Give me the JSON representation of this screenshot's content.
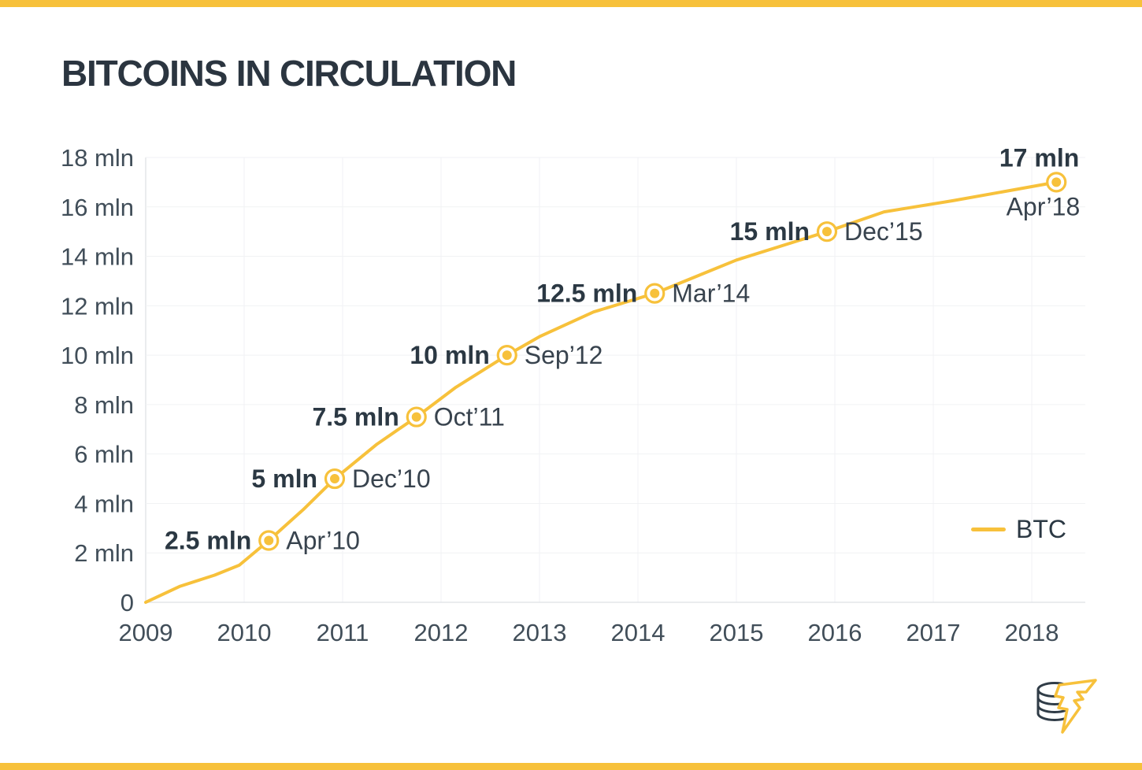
{
  "page": {
    "accent_bar_color": "#F7C13B",
    "background_color": "#FFFFFF",
    "title_color": "#2B3540"
  },
  "chart_data": {
    "type": "line",
    "title": "BITCOINS IN CIRCULATION",
    "xlabel": "",
    "ylabel": "",
    "xlim": [
      2009,
      2018.55
    ],
    "ylim": [
      0,
      18
    ],
    "grid": {
      "horizontal": true,
      "vertical": true
    },
    "x_ticks": [
      {
        "value": 2009,
        "label": "2009"
      },
      {
        "value": 2010,
        "label": "2010"
      },
      {
        "value": 2011,
        "label": "2011"
      },
      {
        "value": 2012,
        "label": "2012"
      },
      {
        "value": 2013,
        "label": "2013"
      },
      {
        "value": 2014,
        "label": "2014"
      },
      {
        "value": 2015,
        "label": "2015"
      },
      {
        "value": 2016,
        "label": "2016"
      },
      {
        "value": 2017,
        "label": "2017"
      },
      {
        "value": 2018,
        "label": "2018"
      }
    ],
    "y_ticks": [
      {
        "value": 0,
        "label": "0"
      },
      {
        "value": 2,
        "label": "2 mln"
      },
      {
        "value": 4,
        "label": "4 mln"
      },
      {
        "value": 6,
        "label": "6 mln"
      },
      {
        "value": 8,
        "label": "8 mln"
      },
      {
        "value": 10,
        "label": "10 mln"
      },
      {
        "value": 12,
        "label": "12 mln"
      },
      {
        "value": 14,
        "label": "14 mln"
      },
      {
        "value": 16,
        "label": "16 mln"
      },
      {
        "value": 18,
        "label": "18 mln"
      }
    ],
    "legend": {
      "position": "middle-right",
      "items": [
        {
          "label": "BTC",
          "color": "#F7C13B"
        }
      ]
    },
    "series": [
      {
        "name": "BTC",
        "color": "#F7C13B",
        "points": [
          [
            2009.0,
            0
          ],
          [
            2009.35,
            0.65
          ],
          [
            2009.7,
            1.1
          ],
          [
            2009.95,
            1.5
          ],
          [
            2010.25,
            2.5
          ],
          [
            2010.6,
            3.75
          ],
          [
            2010.92,
            5.0
          ],
          [
            2011.35,
            6.4
          ],
          [
            2011.75,
            7.5
          ],
          [
            2012.15,
            8.7
          ],
          [
            2012.67,
            10.0
          ],
          [
            2013.0,
            10.75
          ],
          [
            2013.55,
            11.75
          ],
          [
            2014.17,
            12.5
          ],
          [
            2015.0,
            13.85
          ],
          [
            2015.92,
            15.0
          ],
          [
            2016.5,
            15.8
          ],
          [
            2017.2,
            16.25
          ],
          [
            2018.25,
            17.0
          ]
        ]
      }
    ],
    "annotated_points": [
      {
        "x": 2010.25,
        "y": 2.5,
        "value_label": "2.5 mln",
        "date_label": "Apr’10",
        "layout": "side"
      },
      {
        "x": 2010.92,
        "y": 5.0,
        "value_label": "5 mln",
        "date_label": "Dec’10",
        "layout": "side"
      },
      {
        "x": 2011.75,
        "y": 7.5,
        "value_label": "7.5 mln",
        "date_label": "Oct’11",
        "layout": "side"
      },
      {
        "x": 2012.67,
        "y": 10.0,
        "value_label": "10 mln",
        "date_label": "Sep’12",
        "layout": "side"
      },
      {
        "x": 2014.17,
        "y": 12.5,
        "value_label": "12.5 mln",
        "date_label": "Mar’14",
        "layout": "side"
      },
      {
        "x": 2015.92,
        "y": 15.0,
        "value_label": "15 mln",
        "date_label": "Dec’15",
        "layout": "side"
      },
      {
        "x": 2018.25,
        "y": 17.0,
        "value_label": "17 mln",
        "date_label": "Apr’18",
        "layout": "stacked"
      }
    ],
    "style": {
      "line_color": "#F7C13B",
      "marker_fill": "#F7C13B",
      "marker_ring": "#FFFFFF",
      "grid_color": "#F1F2F4",
      "axis_color": "#E3E6E9",
      "tick_label_color": "#414E59",
      "value_label_color": "#2B3843",
      "date_label_color": "#38434E"
    }
  },
  "branding": {
    "logo_icon": "coin-stack-lightning-icon"
  }
}
